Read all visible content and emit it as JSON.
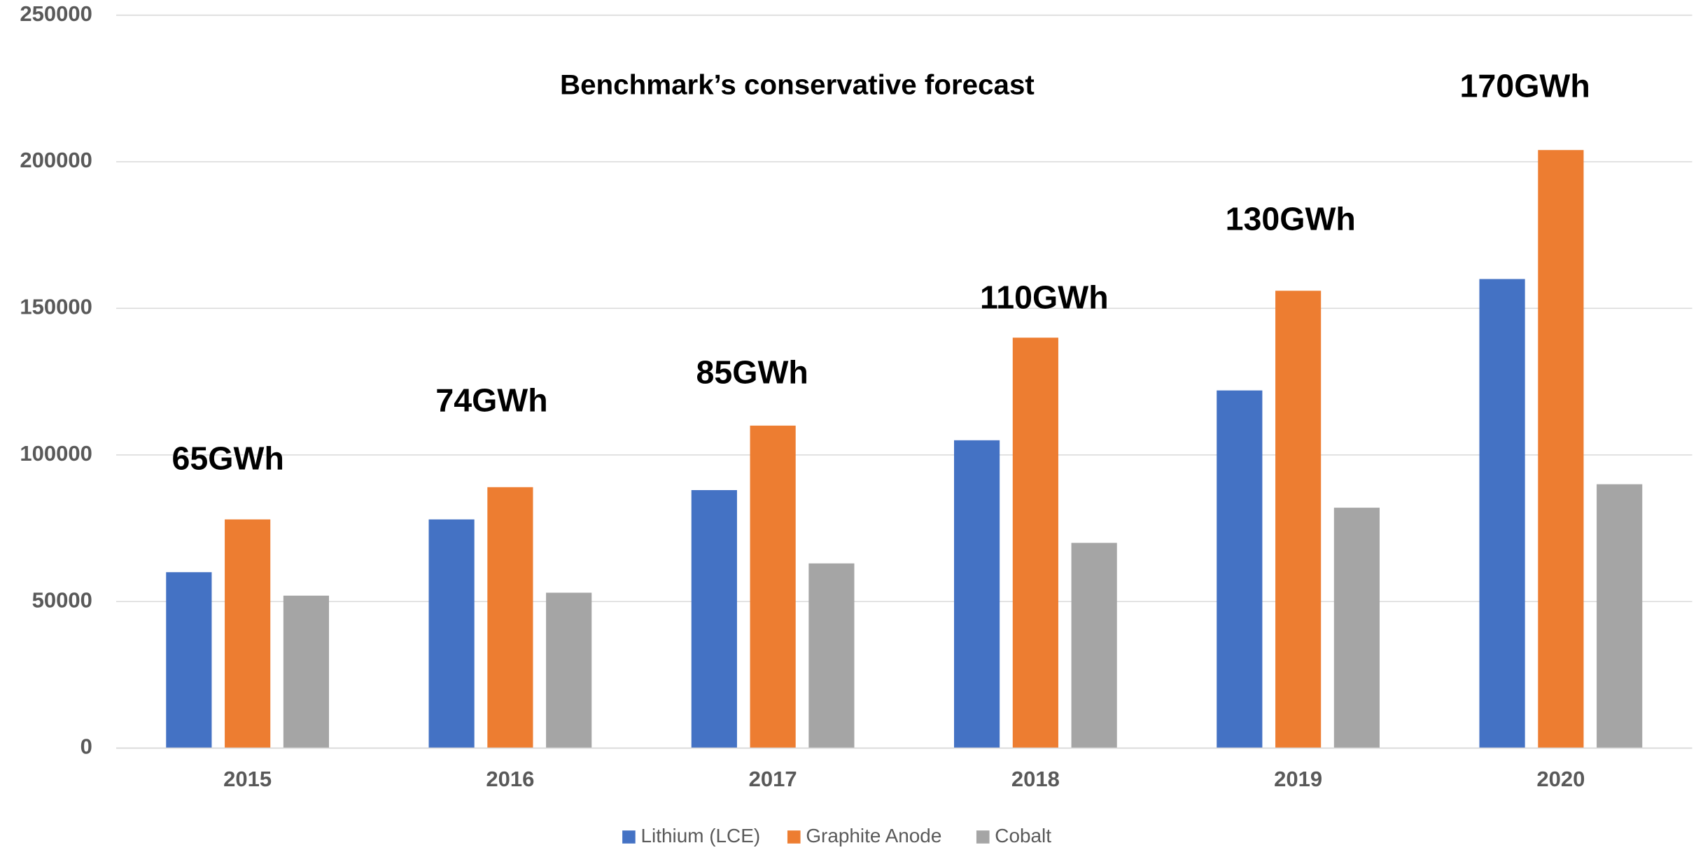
{
  "chart_data": {
    "type": "bar",
    "title": "Benchmark’s conservative forecast",
    "categories": [
      "2015",
      "2016",
      "2017",
      "2018",
      "2019",
      "2020"
    ],
    "annotations": [
      "65GWh",
      "74GWh",
      "85GWh",
      "110GWh",
      "130GWh",
      "170GWh"
    ],
    "series": [
      {
        "name": "Lithium (LCE)",
        "color": "#4472c4",
        "values": [
          60000,
          78000,
          88000,
          105000,
          122000,
          160000
        ]
      },
      {
        "name": "Graphite Anode",
        "color": "#ed7d31",
        "values": [
          78000,
          89000,
          110000,
          140000,
          156000,
          204000
        ]
      },
      {
        "name": "Cobalt",
        "color": "#a5a5a5",
        "values": [
          52000,
          53000,
          63000,
          70000,
          82000,
          90000
        ]
      }
    ],
    "ylim": [
      0,
      250000
    ],
    "yticks": [
      0,
      50000,
      100000,
      150000,
      200000,
      250000
    ],
    "grid": true,
    "legend": "bottom"
  }
}
